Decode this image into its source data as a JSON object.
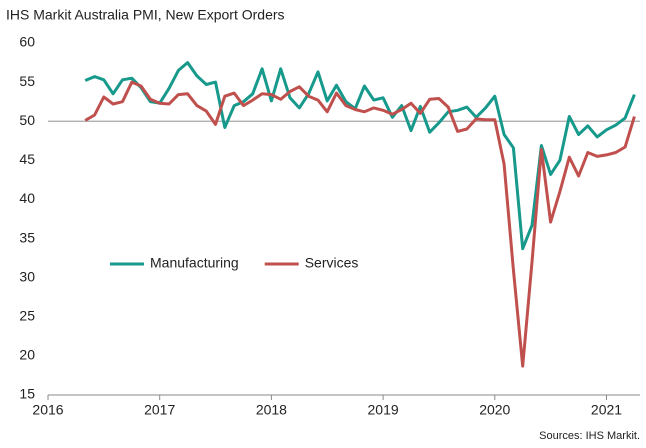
{
  "chart_data": {
    "type": "line",
    "title": "IHS Markit Australia PMI, New Export Orders",
    "source": "Sources: IHS Markit.",
    "x": [
      2016.333,
      2016.417,
      2016.5,
      2016.583,
      2016.667,
      2016.75,
      2016.833,
      2016.917,
      2017,
      2017.083,
      2017.167,
      2017.25,
      2017.333,
      2017.417,
      2017.5,
      2017.583,
      2017.667,
      2017.75,
      2017.833,
      2017.917,
      2018,
      2018.083,
      2018.167,
      2018.25,
      2018.333,
      2018.417,
      2018.5,
      2018.583,
      2018.667,
      2018.75,
      2018.833,
      2018.917,
      2019,
      2019.083,
      2019.167,
      2019.25,
      2019.333,
      2019.417,
      2019.5,
      2019.583,
      2019.667,
      2019.75,
      2019.833,
      2019.917,
      2020,
      2020.083,
      2020.167,
      2020.25,
      2020.333,
      2020.417,
      2020.5,
      2020.583,
      2020.667,
      2020.75,
      2020.833,
      2020.917,
      2021,
      2021.083,
      2021.167,
      2021.25
    ],
    "series": [
      {
        "name": "Manufacturing",
        "color": "#17998c",
        "values": [
          55.2,
          55.7,
          55.3,
          53.5,
          55.3,
          55.5,
          54.3,
          52.5,
          52.3,
          54.2,
          56.5,
          57.5,
          55.8,
          54.7,
          55.0,
          49.2,
          52.0,
          52.5,
          53.5,
          56.7,
          52.6,
          56.7,
          53.0,
          51.7,
          53.5,
          56.3,
          52.6,
          54.6,
          52.5,
          51.6,
          54.5,
          52.7,
          53.0,
          50.5,
          52.0,
          48.8,
          51.9,
          48.6,
          49.8,
          51.2,
          51.4,
          51.8,
          50.5,
          51.7,
          53.2,
          48.3,
          46.6,
          33.7,
          36.7,
          46.9,
          43.2,
          45.0,
          50.6,
          48.3,
          49.4,
          48.0,
          48.9,
          49.5,
          50.4,
          53.4
        ]
      },
      {
        "name": "Services",
        "color": "#c0504d",
        "values": [
          50.1,
          50.8,
          53.1,
          52.2,
          52.5,
          55.0,
          54.5,
          52.8,
          52.3,
          52.2,
          53.4,
          53.5,
          52.0,
          51.3,
          49.6,
          53.2,
          53.6,
          52.0,
          52.7,
          53.5,
          53.4,
          52.8,
          53.8,
          54.4,
          53.2,
          52.7,
          51.2,
          53.6,
          52.0,
          51.5,
          51.2,
          51.7,
          51.4,
          50.9,
          51.5,
          52.3,
          51.0,
          52.8,
          52.9,
          51.8,
          48.7,
          49.0,
          50.3,
          50.2,
          50.2,
          44.5,
          31.0,
          18.7,
          32.0,
          46.4,
          37.1,
          41.0,
          45.4,
          43.0,
          46.0,
          45.5,
          45.7,
          46.0,
          46.7,
          50.6
        ]
      }
    ],
    "xlim": [
      2016,
      2021.3
    ],
    "xticks": [
      2016,
      2017,
      2018,
      2019,
      2020,
      2021
    ],
    "ylim": [
      15,
      60
    ],
    "yticks": [
      15,
      20,
      25,
      30,
      35,
      40,
      45,
      50,
      55,
      60
    ],
    "reference_line": 50,
    "reference_color": "#a6a6a6",
    "legend": "center-left",
    "grid": false
  }
}
